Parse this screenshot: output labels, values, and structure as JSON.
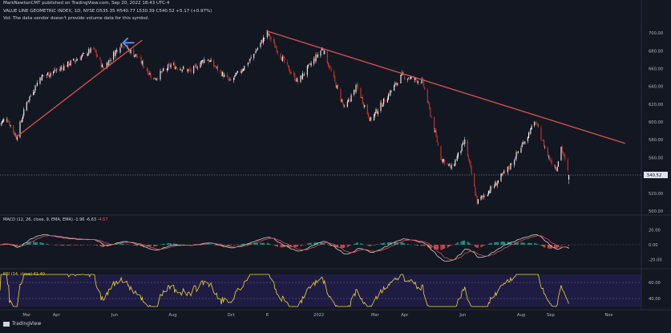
{
  "header": {
    "publisher_line": "MarkNewtonCMT published on TradingView.com, Sep 20, 2022 18:43 UTC-4",
    "symbol_line": "VALUE LINE GEOMETRIC INDEX, 1D, NYSE  O535.35  H540.77  L530.39  C540.52  +5.17 (+0.97%)",
    "volume_note": "Vol: The data vendor doesn't provide volume data for this symbol."
  },
  "macd_label": "MACD (12, 26, close, 9, EMA, EMA)",
  "macd_values": [
    "-1.96",
    "-6.63",
    "-4.67"
  ],
  "rsi_label": "RSI (14, close) 41.40",
  "brand": "TradingView",
  "colors": {
    "background": "#131722",
    "up_candle": "#f2f2f2",
    "down_candle": "#c0392b",
    "trendline": "#d9534f",
    "arrow": "#5b8def",
    "macd_line": "#d0d0d0",
    "signal_line": "#d9534f",
    "hist_pos": "#26a69a",
    "hist_neg": "#ef5350",
    "rsi_line": "#f0d43a",
    "rsi_band": "#2a2060"
  },
  "chart_data": [
    {
      "type": "candlestick",
      "title": "VALUE LINE GEOMETRIC INDEX, 1D, NYSE",
      "ylim": [
        500,
        710
      ],
      "yticks": [
        500,
        520,
        540,
        560,
        580,
        600,
        620,
        640,
        660,
        680,
        700
      ],
      "last_price_label": "540.52",
      "last_price": 540.52,
      "x_tick_labels": [
        "Mar",
        "Apr",
        "Jun",
        "Aug",
        "Oct",
        "8",
        "2022",
        "Mar",
        "Apr",
        "Jun",
        "Aug",
        "Sep",
        "Nov"
      ],
      "price_path_anchors": [
        {
          "date": "2021-02-01",
          "value": 598
        },
        {
          "date": "2021-02-08",
          "value": 605
        },
        {
          "date": "2021-02-18",
          "value": 583
        },
        {
          "date": "2021-03-01",
          "value": 622
        },
        {
          "date": "2021-03-15",
          "value": 650
        },
        {
          "date": "2021-04-05",
          "value": 660
        },
        {
          "date": "2021-04-25",
          "value": 672
        },
        {
          "date": "2021-05-10",
          "value": 682
        },
        {
          "date": "2021-05-20",
          "value": 660
        },
        {
          "date": "2021-06-08",
          "value": 688
        },
        {
          "date": "2021-06-25",
          "value": 673
        },
        {
          "date": "2021-07-12",
          "value": 648
        },
        {
          "date": "2021-07-30",
          "value": 664
        },
        {
          "date": "2021-08-20",
          "value": 657
        },
        {
          "date": "2021-09-05",
          "value": 672
        },
        {
          "date": "2021-09-30",
          "value": 645
        },
        {
          "date": "2021-10-20",
          "value": 668
        },
        {
          "date": "2021-11-08",
          "value": 700
        },
        {
          "date": "2021-11-30",
          "value": 660
        },
        {
          "date": "2021-12-10",
          "value": 645
        },
        {
          "date": "2022-01-05",
          "value": 683
        },
        {
          "date": "2022-01-28",
          "value": 615
        },
        {
          "date": "2022-02-10",
          "value": 640
        },
        {
          "date": "2022-02-24",
          "value": 602
        },
        {
          "date": "2022-03-29",
          "value": 652
        },
        {
          "date": "2022-04-20",
          "value": 645
        },
        {
          "date": "2022-05-09",
          "value": 560
        },
        {
          "date": "2022-05-20",
          "value": 548
        },
        {
          "date": "2022-06-03",
          "value": 578
        },
        {
          "date": "2022-06-16",
          "value": 510
        },
        {
          "date": "2022-07-05",
          "value": 530
        },
        {
          "date": "2022-07-20",
          "value": 550
        },
        {
          "date": "2022-08-16",
          "value": 600
        },
        {
          "date": "2022-08-30",
          "value": 560
        },
        {
          "date": "2022-09-07",
          "value": 548
        },
        {
          "date": "2022-09-12",
          "value": 572
        },
        {
          "date": "2022-09-20",
          "value": 540
        }
      ],
      "trendlines": [
        {
          "from": {
            "date": "2021-02-18",
            "value": 583
          },
          "to": {
            "date": "2021-06-30",
            "value": 692
          }
        },
        {
          "from": {
            "date": "2021-11-08",
            "value": 702
          },
          "to": {
            "date": "2022-11-18",
            "value": 576
          }
        }
      ],
      "annotations": [
        {
          "type": "arrow",
          "direction": "left",
          "date": "2021-06-10",
          "value": 689
        }
      ]
    },
    {
      "type": "line",
      "title": "MACD (12, 26, close, 9, EMA, EMA)",
      "ylim": [
        -25,
        25
      ],
      "yticks": [
        20,
        0,
        -20
      ],
      "ytick_labels": [
        "20.00",
        "0.00",
        "-20.00"
      ]
    },
    {
      "type": "line",
      "title": "RSI (14, close)",
      "ylim": [
        30,
        70
      ],
      "yticks": [
        60,
        40
      ],
      "ytick_labels": [
        "60.00",
        "40.00"
      ],
      "band": [
        30,
        70
      ],
      "last_value": 41.4
    }
  ]
}
